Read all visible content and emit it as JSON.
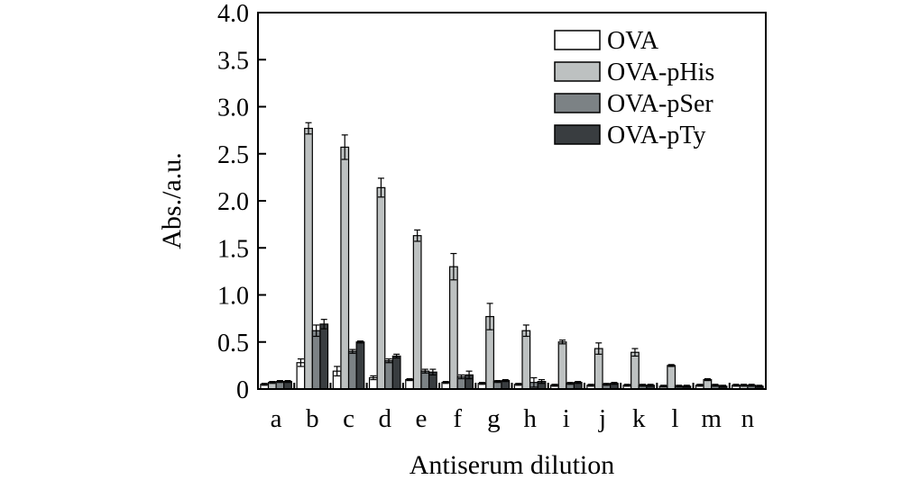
{
  "chart_data": {
    "type": "bar",
    "xlabel": "Antiserum dilution",
    "ylabel": "Abs./a.u.",
    "ylim": [
      0,
      4.0
    ],
    "yticks": [
      0,
      0.5,
      1.0,
      1.5,
      2.0,
      2.5,
      3.0,
      3.5,
      4.0
    ],
    "ytick_labels": [
      "0",
      "0.5",
      "1.0",
      "1.5",
      "2.0",
      "2.5",
      "3.0",
      "3.5",
      "4.0"
    ],
    "categories": [
      "a",
      "b",
      "c",
      "d",
      "e",
      "f",
      "g",
      "h",
      "i",
      "j",
      "k",
      "l",
      "m",
      "n"
    ],
    "legend_position": "top-right",
    "grid": false,
    "series": [
      {
        "name": "OVA",
        "color": "#ffffff",
        "values": [
          0.05,
          0.28,
          0.19,
          0.12,
          0.1,
          0.07,
          0.06,
          0.05,
          0.04,
          0.04,
          0.04,
          0.03,
          0.04,
          0.04
        ],
        "errors": [
          0.01,
          0.04,
          0.05,
          0.02,
          0.01,
          0.01,
          0.01,
          0.01,
          0.01,
          0.01,
          0.01,
          0.01,
          0.01,
          0.01
        ]
      },
      {
        "name": "OVA-pHis",
        "color": "#bdc1c1",
        "values": [
          0.07,
          2.77,
          2.57,
          2.14,
          1.63,
          1.3,
          0.77,
          0.62,
          0.5,
          0.43,
          0.39,
          0.25,
          0.1,
          0.04
        ],
        "errors": [
          0.01,
          0.06,
          0.13,
          0.1,
          0.06,
          0.14,
          0.14,
          0.06,
          0.02,
          0.06,
          0.04,
          0.01,
          0.01,
          0.01
        ]
      },
      {
        "name": "OVA-pSer",
        "color": "#7c8285",
        "values": [
          0.08,
          0.62,
          0.4,
          0.3,
          0.19,
          0.13,
          0.08,
          0.07,
          0.06,
          0.05,
          0.04,
          0.03,
          0.04,
          0.04
        ],
        "errors": [
          0.01,
          0.06,
          0.02,
          0.02,
          0.02,
          0.02,
          0.01,
          0.05,
          0.01,
          0.01,
          0.01,
          0.01,
          0.01,
          0.01
        ]
      },
      {
        "name": "OVA-pTy",
        "color": "#393d40",
        "values": [
          0.08,
          0.69,
          0.5,
          0.35,
          0.18,
          0.15,
          0.09,
          0.08,
          0.07,
          0.06,
          0.04,
          0.03,
          0.03,
          0.03
        ],
        "errors": [
          0.01,
          0.05,
          0.01,
          0.02,
          0.03,
          0.04,
          0.01,
          0.02,
          0.01,
          0.01,
          0.01,
          0.01,
          0.01,
          0.01
        ]
      }
    ]
  }
}
